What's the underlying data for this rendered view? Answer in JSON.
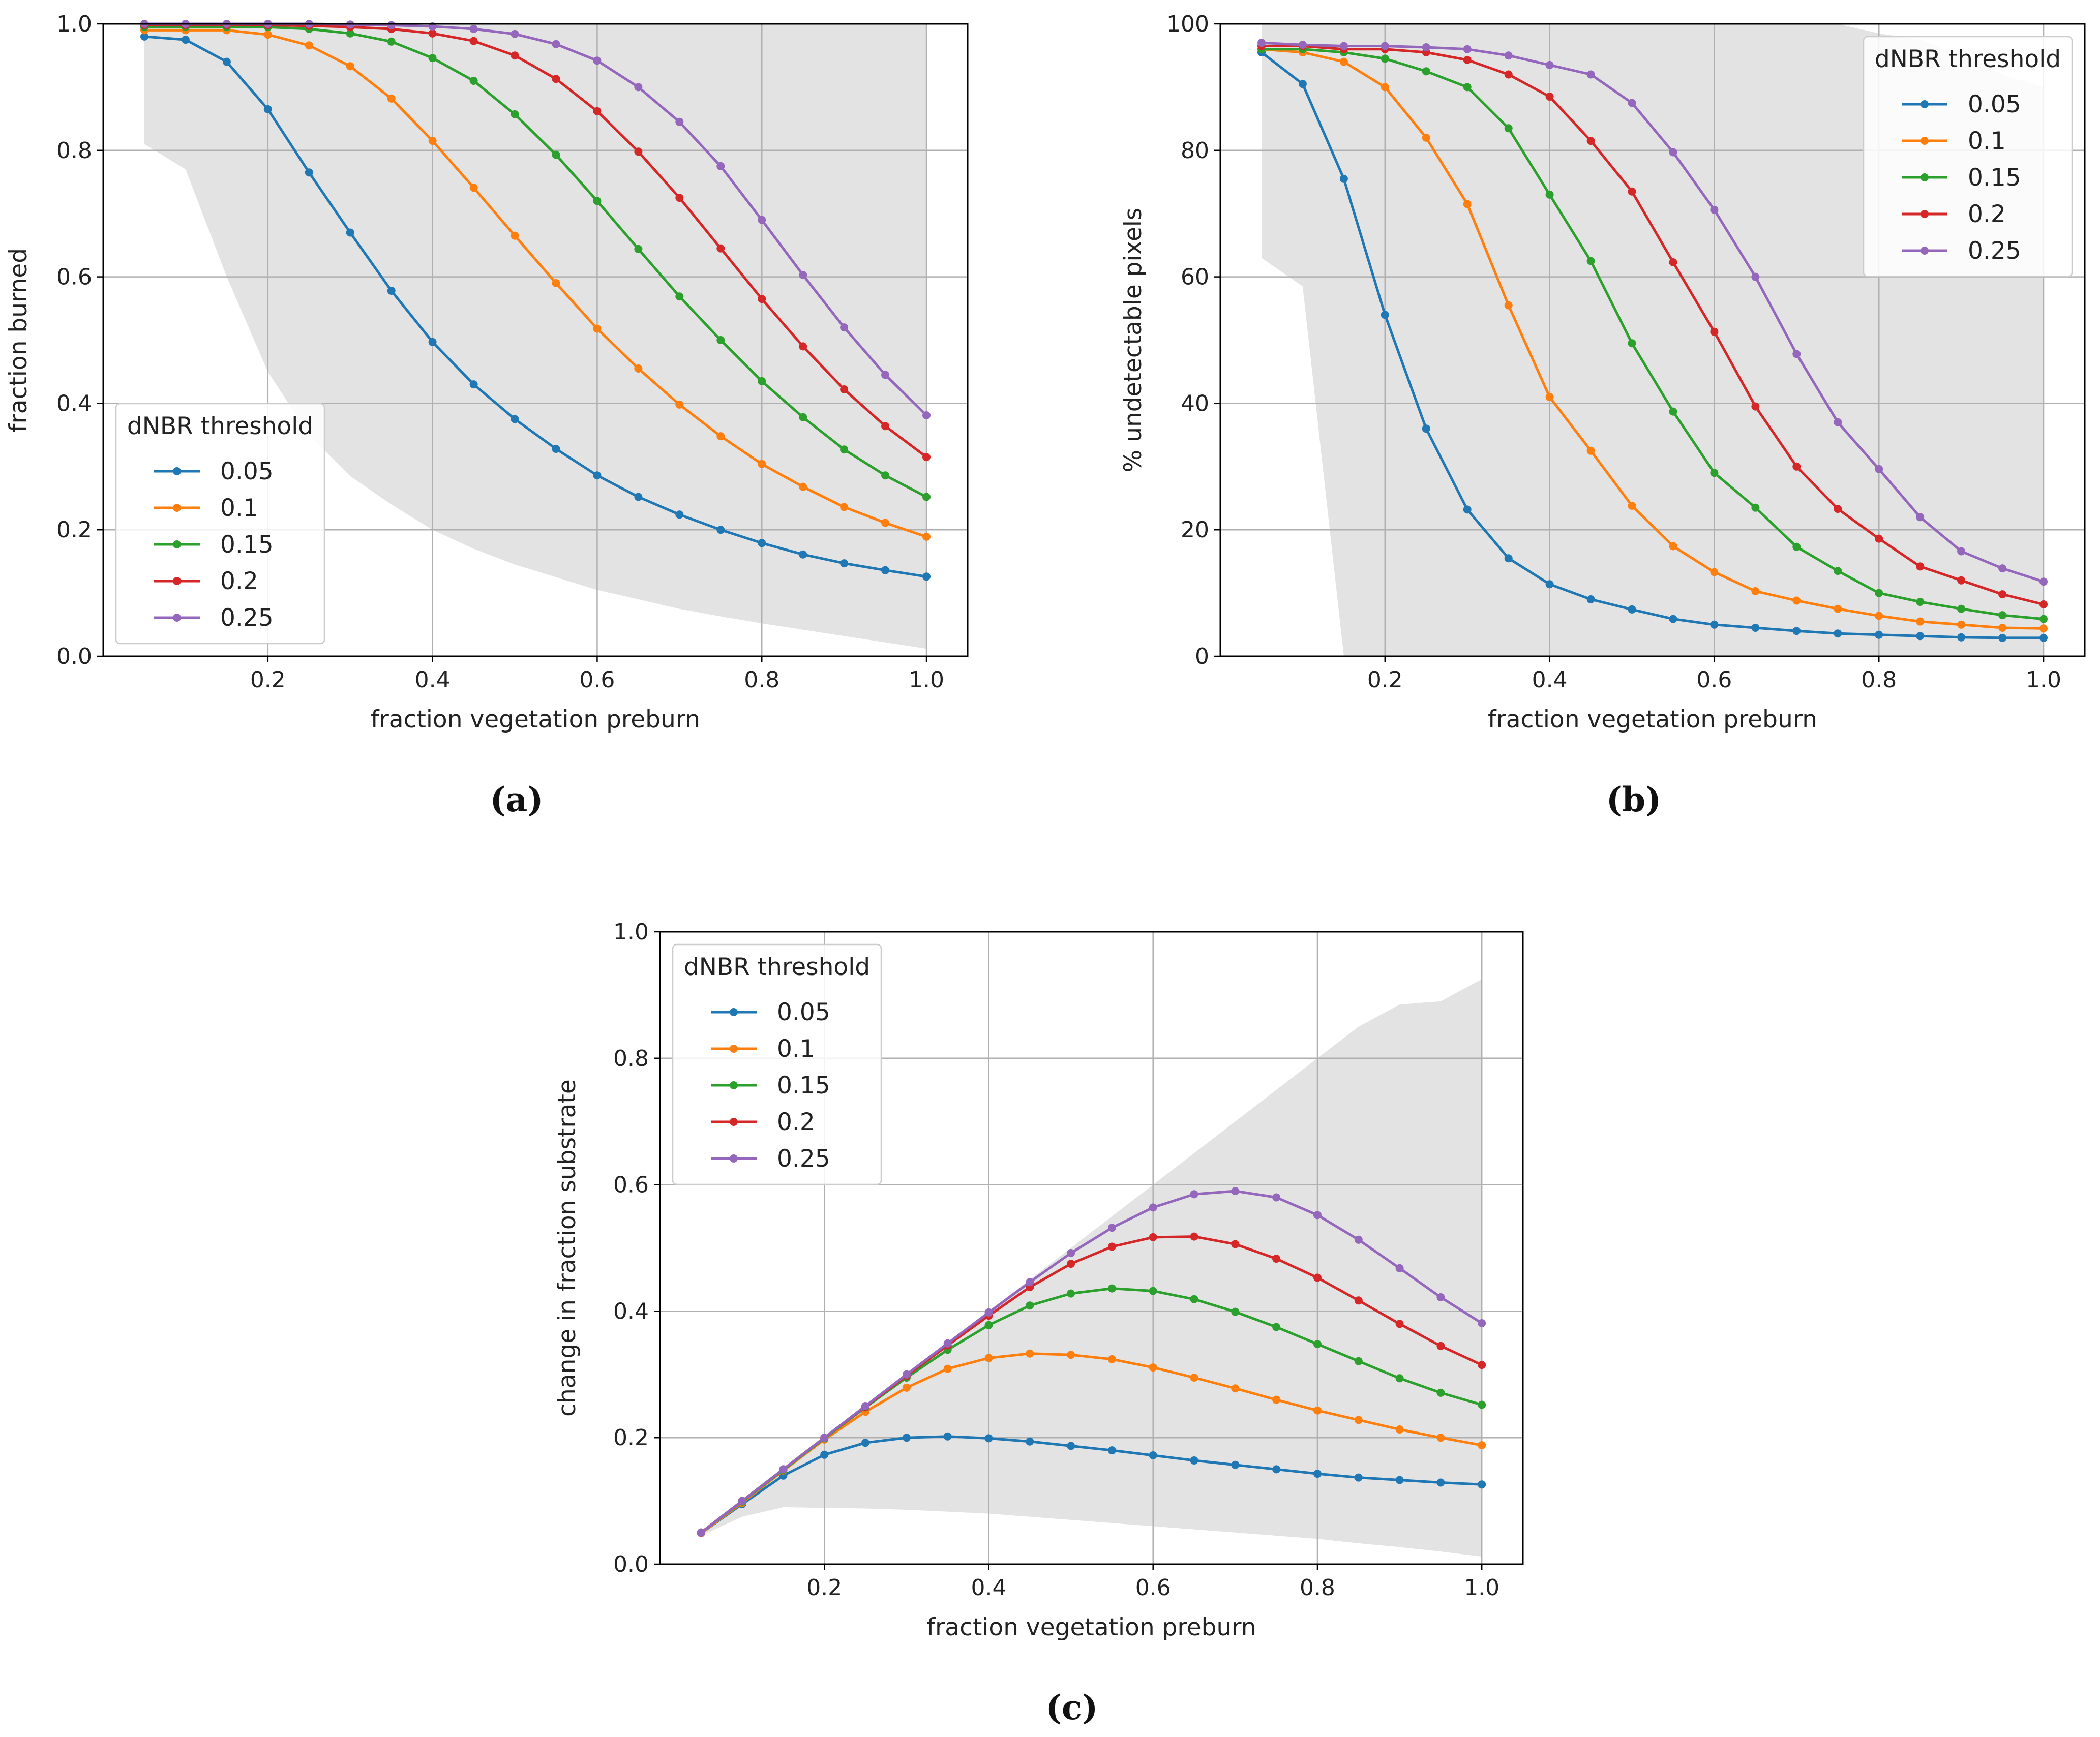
{
  "figure": {
    "captions": [
      "(a)",
      "(b)",
      "(c)"
    ]
  },
  "legend_title": "dNBR threshold",
  "series_names": [
    "0.05",
    "0.1",
    "0.15",
    "0.2",
    "0.25"
  ],
  "series_colors": [
    "#1f77b4",
    "#ff7f0e",
    "#2ca02c",
    "#d62728",
    "#9467bd"
  ],
  "band_color": "#e3e3e3",
  "chart_data": [
    {
      "type": "line",
      "panel": "a",
      "xlabel": "fraction vegetation preburn",
      "ylabel": "fraction burned",
      "xlim": [
        0.0,
        1.05
      ],
      "ylim": [
        0.0,
        1.0
      ],
      "xticks": [
        0.2,
        0.4,
        0.6,
        0.8,
        1.0
      ],
      "xtick_labels": [
        "0.2",
        "0.4",
        "0.6",
        "0.8",
        "1.0"
      ],
      "yticks": [
        0.0,
        0.2,
        0.4,
        0.6,
        0.8,
        1.0
      ],
      "ytick_labels": [
        "0.0",
        "0.2",
        "0.4",
        "0.6",
        "0.8",
        "1.0"
      ],
      "grid": true,
      "legend_position": "lower-left",
      "x": [
        0.05,
        0.1,
        0.15,
        0.2,
        0.25,
        0.3,
        0.35,
        0.4,
        0.45,
        0.5,
        0.55,
        0.6,
        0.65,
        0.7,
        0.75,
        0.8,
        0.85,
        0.9,
        0.95,
        1.0
      ],
      "band": {
        "x": [
          0.05,
          0.1,
          0.15,
          0.2,
          0.25,
          0.3,
          0.35,
          0.4,
          0.45,
          0.5,
          0.55,
          0.6,
          0.65,
          0.7,
          0.75,
          0.8,
          0.85,
          0.9,
          0.95,
          1.0
        ],
        "lower": [
          0.81,
          0.77,
          0.6,
          0.45,
          0.35,
          0.285,
          0.24,
          0.2,
          0.17,
          0.145,
          0.125,
          0.105,
          0.09,
          0.075,
          0.063,
          0.052,
          0.042,
          0.032,
          0.022,
          0.012
        ],
        "upper": [
          1.0,
          1.0,
          1.0,
          1.0,
          1.0,
          1.0,
          1.0,
          1.0,
          1.0,
          1.0,
          1.0,
          1.0,
          1.0,
          1.0,
          1.0,
          1.0,
          1.0,
          1.0,
          1.0,
          1.0
        ]
      },
      "series": [
        {
          "name": "0.05",
          "values": [
            0.98,
            0.975,
            0.94,
            0.865,
            0.765,
            0.67,
            0.578,
            0.497,
            0.43,
            0.375,
            0.328,
            0.286,
            0.252,
            0.224,
            0.2,
            0.179,
            0.161,
            0.147,
            0.136,
            0.126
          ]
        },
        {
          "name": "0.1",
          "values": [
            0.99,
            0.99,
            0.99,
            0.983,
            0.966,
            0.933,
            0.882,
            0.815,
            0.741,
            0.665,
            0.59,
            0.518,
            0.455,
            0.398,
            0.348,
            0.304,
            0.268,
            0.236,
            0.211,
            0.189
          ]
        },
        {
          "name": "0.15",
          "values": [
            0.995,
            0.995,
            0.995,
            0.995,
            0.992,
            0.985,
            0.972,
            0.946,
            0.91,
            0.857,
            0.793,
            0.72,
            0.644,
            0.569,
            0.5,
            0.435,
            0.378,
            0.327,
            0.286,
            0.252
          ]
        },
        {
          "name": "0.2",
          "values": [
            0.998,
            0.998,
            0.998,
            0.998,
            0.997,
            0.995,
            0.992,
            0.985,
            0.973,
            0.95,
            0.913,
            0.862,
            0.798,
            0.725,
            0.645,
            0.565,
            0.49,
            0.422,
            0.364,
            0.315
          ]
        },
        {
          "name": "0.25",
          "values": [
            1.0,
            1.0,
            1.0,
            1.0,
            1.0,
            0.999,
            0.998,
            0.996,
            0.992,
            0.984,
            0.968,
            0.942,
            0.9,
            0.845,
            0.775,
            0.69,
            0.603,
            0.52,
            0.445,
            0.381
          ]
        }
      ]
    },
    {
      "type": "line",
      "panel": "b",
      "xlabel": "fraction vegetation preburn",
      "ylabel": "% undetectable pixels",
      "xlim": [
        0.0,
        1.05
      ],
      "ylim": [
        0,
        100
      ],
      "xticks": [
        0.2,
        0.4,
        0.6,
        0.8,
        1.0
      ],
      "xtick_labels": [
        "0.2",
        "0.4",
        "0.6",
        "0.8",
        "1.0"
      ],
      "yticks": [
        0,
        20,
        40,
        60,
        80,
        100
      ],
      "ytick_labels": [
        "0",
        "20",
        "40",
        "60",
        "80",
        "100"
      ],
      "grid": true,
      "legend_position": "upper-right",
      "x": [
        0.05,
        0.1,
        0.15,
        0.2,
        0.25,
        0.3,
        0.35,
        0.4,
        0.45,
        0.5,
        0.55,
        0.6,
        0.65,
        0.7,
        0.75,
        0.8,
        0.85,
        0.9,
        0.95,
        1.0
      ],
      "band": {
        "x": [
          0.05,
          0.1,
          0.15,
          0.2,
          0.25,
          0.3,
          0.35,
          0.4,
          0.45,
          0.5,
          0.55,
          0.6,
          0.65,
          0.7,
          0.75,
          0.8,
          0.85,
          0.9,
          0.95,
          1.0
        ],
        "lower": [
          63,
          58.5,
          0,
          0,
          0,
          0,
          0,
          0,
          0,
          0,
          0,
          0,
          0,
          0,
          0,
          0,
          0,
          0,
          0,
          0
        ],
        "upper": [
          100,
          100,
          100,
          100,
          100,
          100,
          100,
          100,
          100,
          100,
          100,
          100,
          100,
          100,
          100,
          98.5,
          97.5,
          95,
          92,
          90
        ]
      },
      "series": [
        {
          "name": "0.05",
          "values": [
            95.5,
            90.5,
            75.5,
            54,
            36,
            23.2,
            15.5,
            11.4,
            9,
            7.4,
            5.9,
            5,
            4.5,
            4,
            3.6,
            3.4,
            3.2,
            3.0,
            2.9,
            2.9
          ]
        },
        {
          "name": "0.1",
          "values": [
            96,
            95.5,
            94,
            90,
            82,
            71.5,
            55.5,
            41,
            32.5,
            23.8,
            17.4,
            13.3,
            10.3,
            8.8,
            7.5,
            6.4,
            5.5,
            5.0,
            4.5,
            4.4
          ]
        },
        {
          "name": "0.15",
          "values": [
            96,
            96,
            95.5,
            94.5,
            92.5,
            90,
            83.5,
            73,
            62.5,
            49.5,
            38.7,
            29,
            23.5,
            17.3,
            13.5,
            10,
            8.6,
            7.5,
            6.5,
            5.9
          ]
        },
        {
          "name": "0.2",
          "values": [
            96.5,
            96.5,
            96,
            96,
            95.5,
            94.3,
            92,
            88.5,
            81.5,
            73.5,
            62.3,
            51.3,
            39.5,
            30,
            23.3,
            18.6,
            14.2,
            12,
            9.8,
            8.2
          ]
        },
        {
          "name": "0.25",
          "values": [
            97,
            96.7,
            96.5,
            96.5,
            96.3,
            96,
            95,
            93.5,
            92,
            87.5,
            79.7,
            70.6,
            60,
            47.8,
            37,
            29.6,
            22,
            16.6,
            13.9,
            11.8
          ]
        }
      ]
    },
    {
      "type": "line",
      "panel": "c",
      "xlabel": "fraction vegetation preburn",
      "ylabel": "change in fraction substrate",
      "xlim": [
        0.0,
        1.05
      ],
      "ylim": [
        0.0,
        1.0
      ],
      "xticks": [
        0.2,
        0.4,
        0.6,
        0.8,
        1.0
      ],
      "xtick_labels": [
        "0.2",
        "0.4",
        "0.6",
        "0.8",
        "1.0"
      ],
      "yticks": [
        0.0,
        0.2,
        0.4,
        0.6,
        0.8,
        1.0
      ],
      "ytick_labels": [
        "0.0",
        "0.2",
        "0.4",
        "0.6",
        "0.8",
        "1.0"
      ],
      "grid": true,
      "legend_position": "upper-left",
      "x": [
        0.05,
        0.1,
        0.15,
        0.2,
        0.25,
        0.3,
        0.35,
        0.4,
        0.45,
        0.5,
        0.55,
        0.6,
        0.65,
        0.7,
        0.75,
        0.8,
        0.85,
        0.9,
        0.95,
        1.0
      ],
      "band": {
        "x": [
          0.05,
          0.1,
          0.15,
          0.2,
          0.25,
          0.3,
          0.35,
          0.4,
          0.45,
          0.5,
          0.55,
          0.6,
          0.65,
          0.7,
          0.75,
          0.8,
          0.85,
          0.9,
          0.95,
          1.0
        ],
        "lower": [
          0.045,
          0.075,
          0.09,
          0.089,
          0.088,
          0.086,
          0.083,
          0.08,
          0.075,
          0.07,
          0.065,
          0.06,
          0.055,
          0.05,
          0.045,
          0.04,
          0.033,
          0.027,
          0.02,
          0.012
        ],
        "upper": [
          0.05,
          0.1,
          0.15,
          0.2,
          0.25,
          0.3,
          0.35,
          0.4,
          0.45,
          0.5,
          0.55,
          0.6,
          0.65,
          0.7,
          0.75,
          0.8,
          0.85,
          0.885,
          0.89,
          0.925
        ]
      },
      "series": [
        {
          "name": "0.05",
          "values": [
            0.049,
            0.095,
            0.14,
            0.173,
            0.192,
            0.2,
            0.202,
            0.199,
            0.194,
            0.187,
            0.18,
            0.172,
            0.164,
            0.157,
            0.15,
            0.143,
            0.137,
            0.133,
            0.129,
            0.126
          ]
        },
        {
          "name": "0.1",
          "values": [
            0.049,
            0.097,
            0.148,
            0.197,
            0.241,
            0.279,
            0.309,
            0.326,
            0.333,
            0.331,
            0.324,
            0.311,
            0.295,
            0.278,
            0.26,
            0.243,
            0.228,
            0.213,
            0.2,
            0.188
          ]
        },
        {
          "name": "0.15",
          "values": [
            0.05,
            0.099,
            0.149,
            0.199,
            0.248,
            0.295,
            0.339,
            0.378,
            0.409,
            0.428,
            0.436,
            0.432,
            0.419,
            0.399,
            0.375,
            0.348,
            0.321,
            0.294,
            0.271,
            0.252
          ]
        },
        {
          "name": "0.2",
          "values": [
            0.05,
            0.1,
            0.15,
            0.2,
            0.249,
            0.298,
            0.346,
            0.393,
            0.438,
            0.475,
            0.502,
            0.517,
            0.518,
            0.506,
            0.483,
            0.453,
            0.417,
            0.38,
            0.345,
            0.315
          ]
        },
        {
          "name": "0.25",
          "values": [
            0.05,
            0.1,
            0.15,
            0.2,
            0.25,
            0.3,
            0.349,
            0.398,
            0.446,
            0.492,
            0.532,
            0.564,
            0.585,
            0.59,
            0.58,
            0.552,
            0.513,
            0.468,
            0.422,
            0.381
          ]
        }
      ]
    }
  ]
}
